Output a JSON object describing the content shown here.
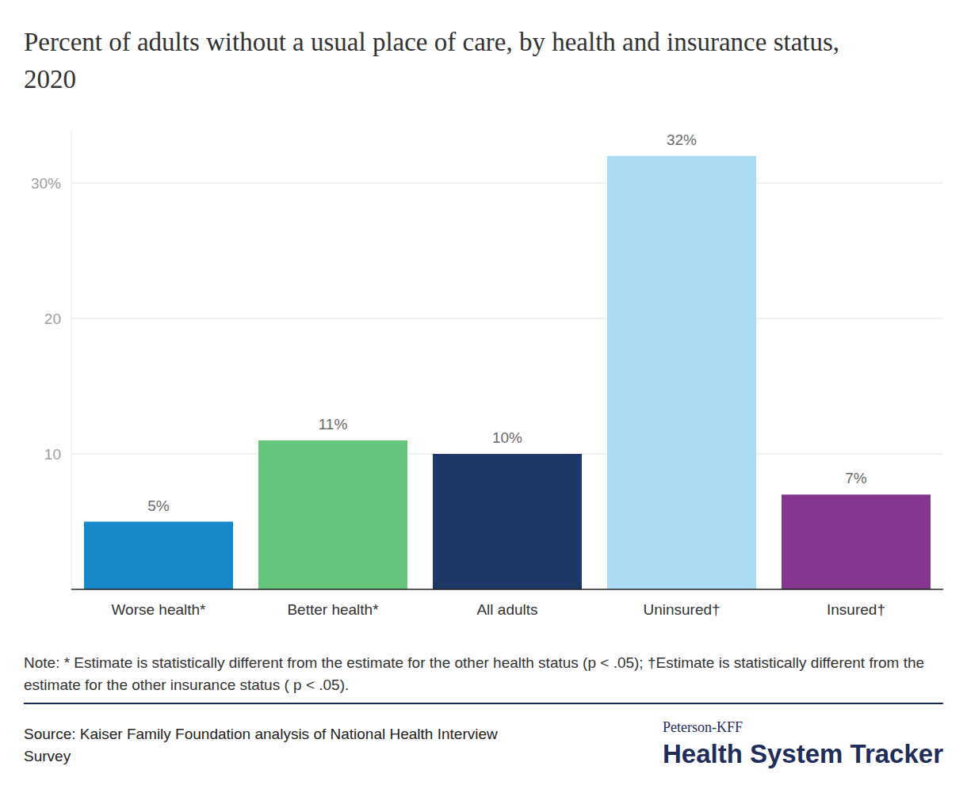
{
  "chart_data": {
    "type": "bar",
    "title": "Percent of adults without a usual place of care, by health and insurance status, 2020",
    "categories": [
      "Worse health*",
      "Better health*",
      "All adults",
      "Uninsured†",
      "Insured†"
    ],
    "values": [
      5,
      11,
      10,
      32,
      7
    ],
    "value_labels": [
      "5%",
      "11%",
      "10%",
      "32%",
      "7%"
    ],
    "colors": [
      "#1788ca",
      "#64c57d",
      "#1f3766",
      "#abdcf4",
      "#85378f"
    ],
    "ylim": [
      0,
      34
    ],
    "yticks": [
      10,
      20,
      {
        "value": 30,
        "label": "30%"
      }
    ],
    "grid": true,
    "data_labels": true,
    "note": "Note: * Estimate is statistically different from the estimate for the other health status (p < .05); †Estimate is statistically different from the estimate for the other insurance status ( p < .05).",
    "source": "Source: Kaiser Family Foundation analysis of National Health Interview Survey",
    "credit": {
      "top": "Peterson-KFF",
      "bottom": "Health System Tracker"
    }
  }
}
